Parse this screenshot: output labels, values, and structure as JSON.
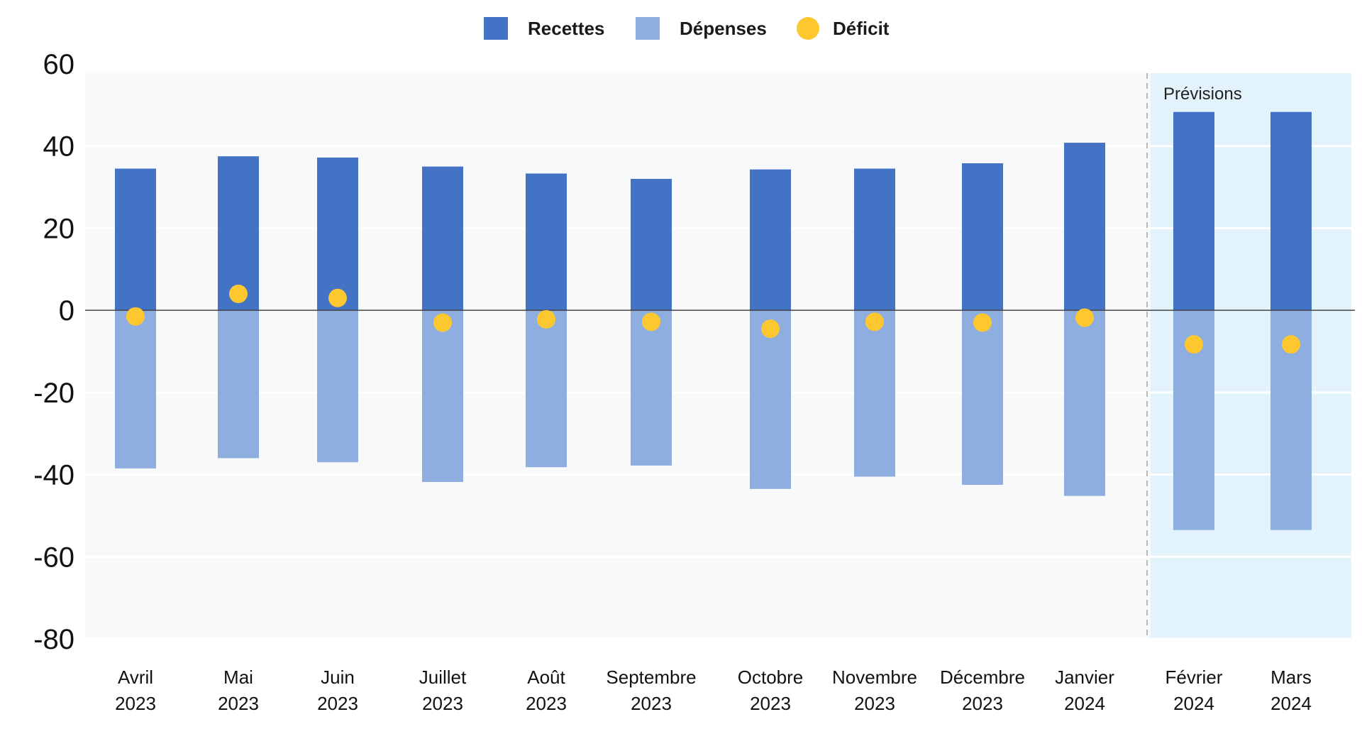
{
  "chart_data": {
    "type": "bar",
    "title": "",
    "xlabel": "",
    "ylabel": "",
    "ylim": [
      -80,
      60
    ],
    "yticks": [
      60,
      40,
      20,
      0,
      -20,
      -40,
      -60,
      -80
    ],
    "grid": true,
    "legend_position": "top-center",
    "categories": [
      {
        "month": "Avril",
        "year": "2023"
      },
      {
        "month": "Mai",
        "year": "2023"
      },
      {
        "month": "Juin",
        "year": "2023"
      },
      {
        "month": "Juillet",
        "year": "2023"
      },
      {
        "month": "Août",
        "year": "2023"
      },
      {
        "month": "Septembre",
        "year": "2023"
      },
      {
        "month": "Octobre",
        "year": "2023"
      },
      {
        "month": "Novembre",
        "year": "2023"
      },
      {
        "month": "Décembre",
        "year": "2023"
      },
      {
        "month": "Janvier",
        "year": "2024"
      },
      {
        "month": "Février",
        "year": "2024"
      },
      {
        "month": "Mars",
        "year": "2024"
      }
    ],
    "series": [
      {
        "name": "Recettes",
        "type": "bar",
        "color": "#4472c4",
        "values": [
          34.5,
          37.5,
          37.2,
          35.0,
          33.3,
          32.0,
          34.3,
          34.5,
          35.8,
          40.8,
          48.3,
          48.3
        ]
      },
      {
        "name": "Dépenses",
        "type": "bar",
        "color": "#8faee0",
        "values": [
          -38.5,
          -36.0,
          -37.0,
          -41.8,
          -38.2,
          -37.8,
          -43.5,
          -40.5,
          -42.5,
          -45.2,
          -53.5,
          -53.5
        ]
      },
      {
        "name": "Déficit",
        "type": "point",
        "color": "#fdc82f",
        "values": [
          -1.5,
          4.0,
          3.0,
          -3.0,
          -2.2,
          -2.8,
          -4.5,
          -2.8,
          -3.0,
          -1.8,
          -8.3,
          -8.3
        ]
      }
    ],
    "forecast": {
      "label": "Prévisions",
      "start_index": 10,
      "color": "#e2f3fb"
    }
  }
}
